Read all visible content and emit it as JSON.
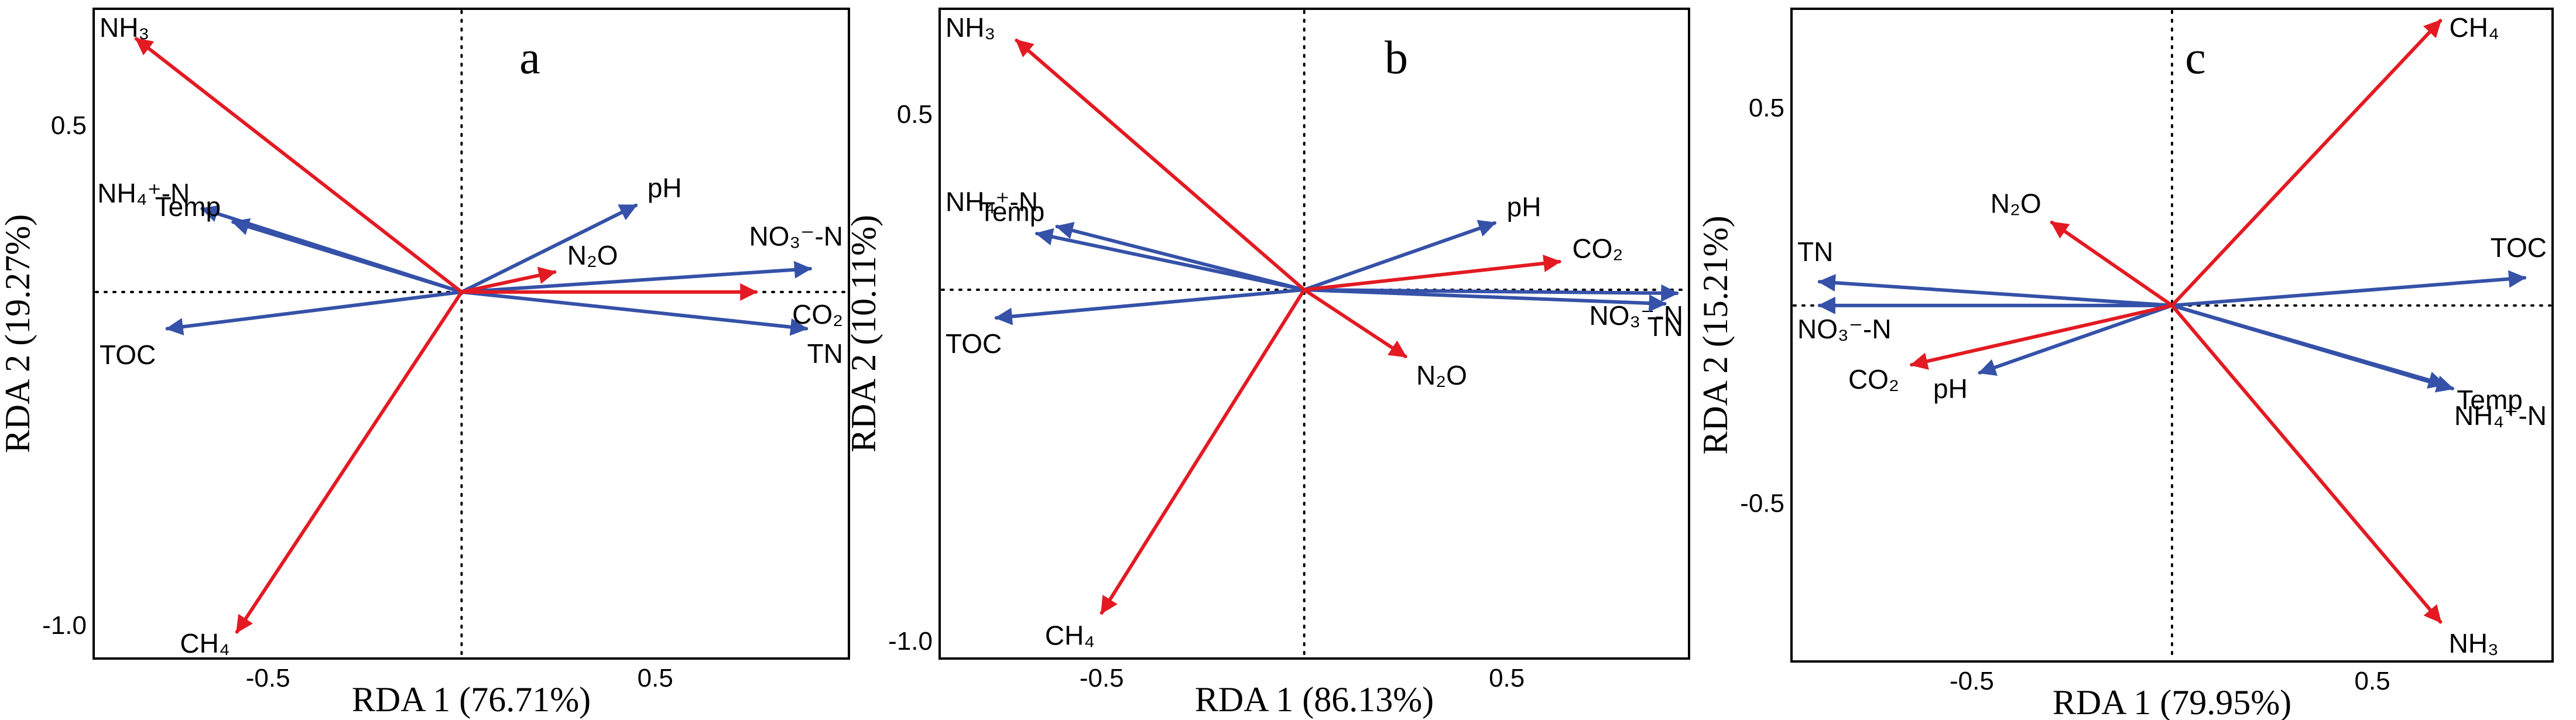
{
  "colors": {
    "species": "#e31a22",
    "environment": "#3551a8"
  },
  "chart_data": [
    {
      "type": "scatter",
      "subtype": "rda-biplot",
      "panel": "a",
      "xlabel": "RDA 1 (76.71%)",
      "ylabel": "RDA 2 (19.27%)",
      "xlim": [
        -0.95,
        1.0
      ],
      "ylim": [
        -1.1,
        0.85
      ],
      "xticks": [
        "-0.5",
        "0.5"
      ],
      "yticks": [
        "0.5",
        "-1.0"
      ],
      "xtick_values": [
        -0.5,
        0.5
      ],
      "ytick_values": [
        0.5,
        -1.0
      ],
      "vectors": [
        {
          "label": "NH₃",
          "group": "species",
          "x": -0.84,
          "y": 0.76
        },
        {
          "label": "CH₄",
          "group": "species",
          "x": -0.58,
          "y": -1.02
        },
        {
          "label": "N₂O",
          "group": "species",
          "x": 0.24,
          "y": 0.06
        },
        {
          "label": "CO₂",
          "group": "species",
          "x": 0.76,
          "y": 0.0
        },
        {
          "label": "NH₄⁺-N",
          "group": "environment",
          "x": -0.67,
          "y": 0.25
        },
        {
          "label": "Temp",
          "group": "environment",
          "x": -0.59,
          "y": 0.21
        },
        {
          "label": "pH",
          "group": "environment",
          "x": 0.45,
          "y": 0.26
        },
        {
          "label": "NO₃⁻-N",
          "group": "environment",
          "x": 0.9,
          "y": 0.07
        },
        {
          "label": "TN",
          "group": "environment",
          "x": 0.89,
          "y": -0.11
        },
        {
          "label": "TOC",
          "group": "environment",
          "x": -0.76,
          "y": -0.11
        }
      ]
    },
    {
      "type": "scatter",
      "subtype": "rda-biplot",
      "panel": "b",
      "xlabel": "RDA 1 (86.13%)",
      "ylabel": "RDA 2 (10.11%)",
      "xlim": [
        -0.9,
        0.95
      ],
      "ylim": [
        -1.05,
        0.8
      ],
      "xticks": [
        "-0.5",
        "0.5"
      ],
      "yticks": [
        "0.5",
        "-1.0"
      ],
      "xtick_values": [
        -0.5,
        0.5
      ],
      "ytick_values": [
        0.5,
        -1.0
      ],
      "vectors": [
        {
          "label": "NH₃",
          "group": "species",
          "x": -0.71,
          "y": 0.71
        },
        {
          "label": "CH₄",
          "group": "species",
          "x": -0.5,
          "y": -0.92
        },
        {
          "label": "N₂O",
          "group": "species",
          "x": 0.25,
          "y": -0.19
        },
        {
          "label": "CO₂",
          "group": "species",
          "x": 0.63,
          "y": 0.08
        },
        {
          "label": "Temp",
          "group": "environment",
          "x": -0.61,
          "y": 0.18
        },
        {
          "label": "NH₄⁺-N",
          "group": "environment",
          "x": -0.66,
          "y": 0.16
        },
        {
          "label": "pH",
          "group": "environment",
          "x": 0.47,
          "y": 0.19
        },
        {
          "label": "NO₃⁻-N",
          "group": "environment",
          "x": 0.92,
          "y": -0.01
        },
        {
          "label": "TN",
          "group": "environment",
          "x": 0.89,
          "y": -0.04
        },
        {
          "label": "TOC",
          "group": "environment",
          "x": -0.76,
          "y": -0.08
        }
      ]
    },
    {
      "type": "scatter",
      "subtype": "rda-biplot",
      "panel": "c",
      "xlabel": "RDA 1 (79.95%)",
      "ylabel": "RDA 2 (15.21%)",
      "xlim": [
        -0.95,
        0.95
      ],
      "ylim": [
        -0.9,
        0.75
      ],
      "xticks": [
        "-0.5",
        "0.5"
      ],
      "yticks": [
        "0.5",
        "-0.5"
      ],
      "xtick_values": [
        -0.5,
        0.5
      ],
      "ytick_values": [
        0.5,
        -0.5
      ],
      "vectors": [
        {
          "label": "CH₄",
          "group": "species",
          "x": 0.67,
          "y": 0.72
        },
        {
          "label": "N₂O",
          "group": "species",
          "x": -0.3,
          "y": 0.21
        },
        {
          "label": "CO₂",
          "group": "species",
          "x": -0.65,
          "y": -0.15
        },
        {
          "label": "NH₃",
          "group": "species",
          "x": 0.67,
          "y": -0.8
        },
        {
          "label": "TN",
          "group": "environment",
          "x": -0.88,
          "y": 0.06
        },
        {
          "label": "NO₃⁻-N",
          "group": "environment",
          "x": -0.88,
          "y": 0.0
        },
        {
          "label": "pH",
          "group": "environment",
          "x": -0.48,
          "y": -0.17
        },
        {
          "label": "TOC",
          "group": "environment",
          "x": 0.88,
          "y": 0.07
        },
        {
          "label": "NH₄⁺-N",
          "group": "environment",
          "x": 0.7,
          "y": -0.21
        },
        {
          "label": "Temp",
          "group": "environment",
          "x": 0.68,
          "y": -0.2
        }
      ]
    }
  ]
}
